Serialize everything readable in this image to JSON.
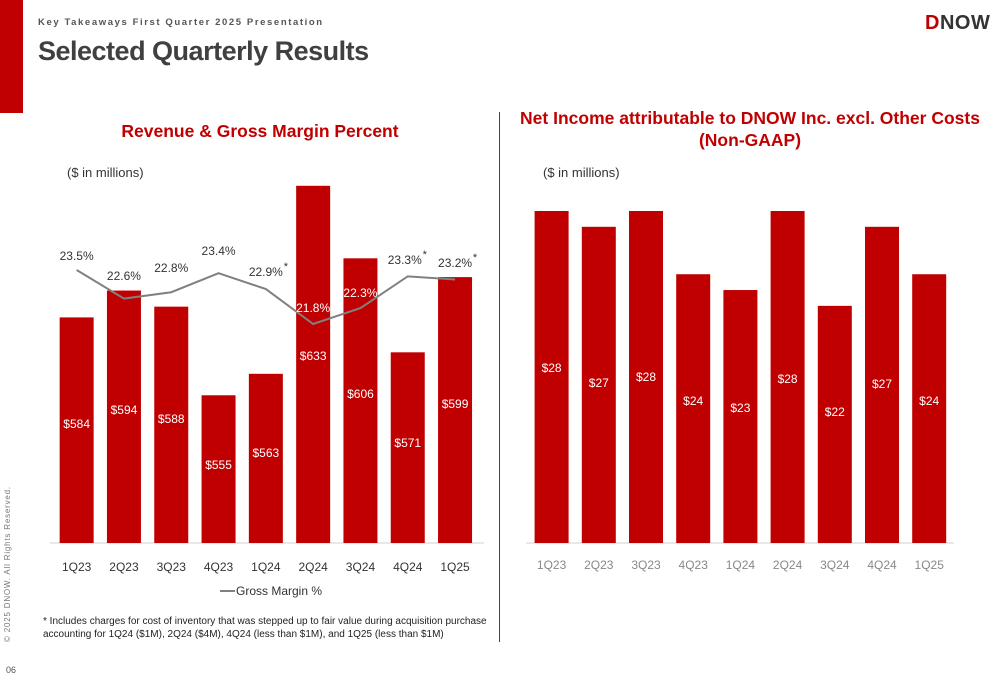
{
  "header": {
    "kicker": "Key Takeaways First Quarter 2025 Presentation",
    "title": "Selected Quarterly Results",
    "logo": "DNOW",
    "copyright": "© 2025 DNOW. All Rights Reserved.",
    "page_number": "06"
  },
  "colors": {
    "accent": "#c00000",
    "line": "#808080",
    "text": "#404040"
  },
  "footnote": "* Includes charges for cost of inventory that was stepped up to fair value during acquisition purchase accounting for 1Q24 ($1M), 2Q24 ($4M), 4Q24 (less than $1M), and 1Q25 (less than $1M)",
  "chart_data": [
    {
      "type": "bar",
      "title": "Revenue & Gross Margin Percent",
      "unit_note": "($ in millions)",
      "categories": [
        "1Q23",
        "2Q23",
        "3Q23",
        "4Q23",
        "1Q24",
        "2Q24",
        "3Q24",
        "4Q24",
        "1Q25"
      ],
      "values": [
        584,
        594,
        588,
        555,
        563,
        633,
        606,
        571,
        599
      ],
      "value_labels": [
        "$584",
        "$594",
        "$588",
        "$555",
        "$563",
        "$633",
        "$606",
        "$571",
        "$599"
      ],
      "line_series": {
        "name": "Gross Margin %",
        "values": [
          23.5,
          22.6,
          22.8,
          23.4,
          22.9,
          21.8,
          22.3,
          23.3,
          23.2
        ],
        "labels": [
          "23.5%",
          "22.6%",
          "22.8%",
          "23.4%",
          "22.9%",
          "21.8%",
          "22.3%",
          "23.3%",
          "23.2%"
        ],
        "asterisk": [
          false,
          false,
          false,
          false,
          true,
          true,
          false,
          true,
          true
        ]
      },
      "legend": "bottom-center"
    },
    {
      "type": "bar",
      "title": "Net Income attributable to DNOW Inc. excl. Other Costs (Non-GAAP)",
      "unit_note": "($ in millions)",
      "categories": [
        "1Q23",
        "2Q23",
        "3Q23",
        "4Q23",
        "1Q24",
        "2Q24",
        "3Q24",
        "4Q24",
        "1Q25"
      ],
      "values": [
        28,
        27,
        28,
        24,
        23,
        28,
        22,
        27,
        24
      ],
      "value_labels": [
        "$28",
        "$27",
        "$28",
        "$24",
        "$23",
        "$28",
        "$22",
        "$27",
        "$24"
      ]
    }
  ]
}
